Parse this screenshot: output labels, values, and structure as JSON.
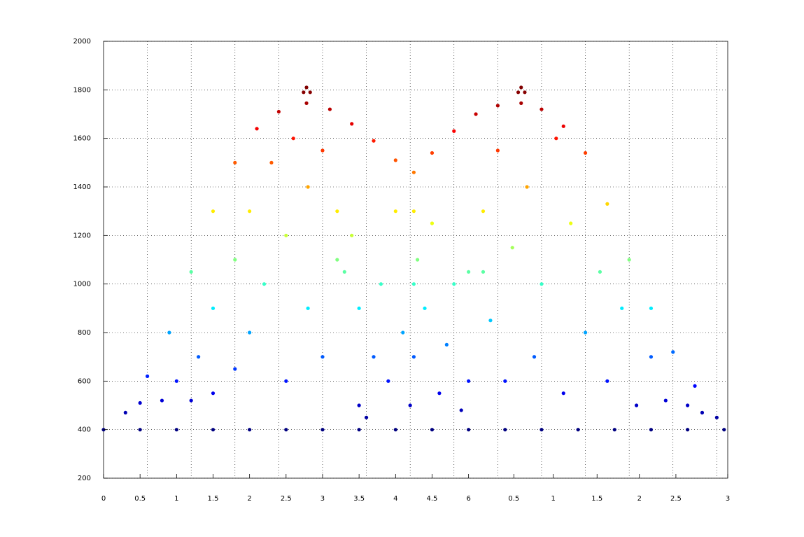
{
  "chart_data": {
    "type": "scatter",
    "xlim": [
      0,
      8.55
    ],
    "ylim": [
      200,
      2000
    ],
    "xticks": [
      0,
      0.5,
      1,
      1.5,
      2,
      2.5,
      3,
      3.5,
      4,
      4.5,
      {
        "value": 5,
        "label": "6"
      },
      {
        "value": 5.62,
        "label": "0.5"
      },
      {
        "value": 6.16,
        "label": "1"
      },
      {
        "value": 6.76,
        "label": "1.5"
      },
      {
        "value": 7.34,
        "label": "2"
      },
      {
        "value": 7.84,
        "label": "2.5"
      },
      {
        "value": 8.55,
        "label": "3"
      }
    ],
    "yticks": [
      200,
      400,
      600,
      800,
      1000,
      1200,
      1400,
      1600,
      1800,
      2000
    ],
    "xgrid": [
      0.6,
      1.2,
      1.8,
      2.4,
      3.0,
      3.6,
      4.2,
      4.8,
      5.4,
      6.0,
      6.6,
      7.2,
      7.8,
      8.4
    ],
    "grid": true,
    "colormap": "jet",
    "clim": [
      400,
      1800
    ],
    "series": [
      {
        "x": [
          0,
          0.5,
          1,
          1.5,
          2,
          2.5,
          3,
          3.5,
          4,
          4.5,
          5,
          5.5,
          6,
          6.5,
          7,
          7.5,
          8,
          8.5,
          0.3,
          0.6,
          0.9,
          1.2,
          1.5,
          1.8,
          2.1,
          2.4,
          2.78,
          3.1,
          3.4,
          3.7,
          4.0,
          4.25,
          4.5,
          4.8,
          5.1,
          5.4,
          5.72,
          6.0,
          6.3,
          6.6,
          6.9,
          7.2,
          7.5,
          7.8,
          8.1,
          8.4,
          2.78,
          2.74,
          2.83,
          5.72,
          5.68,
          5.77,
          0.5,
          0.8,
          1.0,
          1.2,
          1.3,
          1.5,
          1.5,
          1.8,
          1.8,
          2.0,
          2.0,
          2.2,
          2.3,
          2.5,
          2.5,
          2.6,
          2.8,
          2.8,
          3.0,
          3.0,
          3.2,
          3.2,
          3.4,
          3.5,
          3.5,
          3.6,
          3.7,
          3.8,
          3.9,
          4.0,
          4.1,
          4.2,
          4.3,
          4.4,
          4.5,
          4.6,
          4.7,
          4.8,
          4.9,
          5.0,
          5.0,
          5.2,
          5.3,
          5.4,
          5.5,
          5.6,
          5.8,
          5.9,
          6.0,
          6.2,
          6.3,
          6.4,
          6.6,
          6.8,
          6.9,
          7.1,
          7.3,
          7.5,
          7.7,
          8.0,
          8.2,
          3.3,
          5.2,
          4.25,
          4.25,
          4.25
        ],
        "y": [
          400,
          400,
          400,
          400,
          400,
          400,
          400,
          400,
          400,
          400,
          400,
          400,
          400,
          400,
          400,
          400,
          400,
          400,
          470,
          620,
          800,
          1050,
          1300,
          1500,
          1640,
          1710,
          1745,
          1720,
          1660,
          1590,
          1510,
          1460,
          1540,
          1630,
          1700,
          1735,
          1745,
          1720,
          1650,
          1540,
          1330,
          1100,
          900,
          720,
          580,
          450,
          1810,
          1790,
          1790,
          1810,
          1790,
          1790,
          510,
          520,
          600,
          520,
          700,
          900,
          550,
          650,
          1100,
          800,
          1300,
          1000,
          1500,
          600,
          1200,
          1600,
          900,
          1400,
          700,
          1550,
          1100,
          1300,
          1200,
          900,
          500,
          450,
          700,
          1000,
          600,
          1300,
          800,
          500,
          1100,
          900,
          1250,
          550,
          750,
          1000,
          480,
          600,
          1050,
          1300,
          850,
          1550,
          600,
          1150,
          1400,
          700,
          1000,
          1600,
          550,
          1250,
          800,
          1050,
          600,
          900,
          500,
          700,
          520,
          500,
          470,
          1050,
          1050,
          1300,
          1000,
          700
        ]
      }
    ]
  }
}
